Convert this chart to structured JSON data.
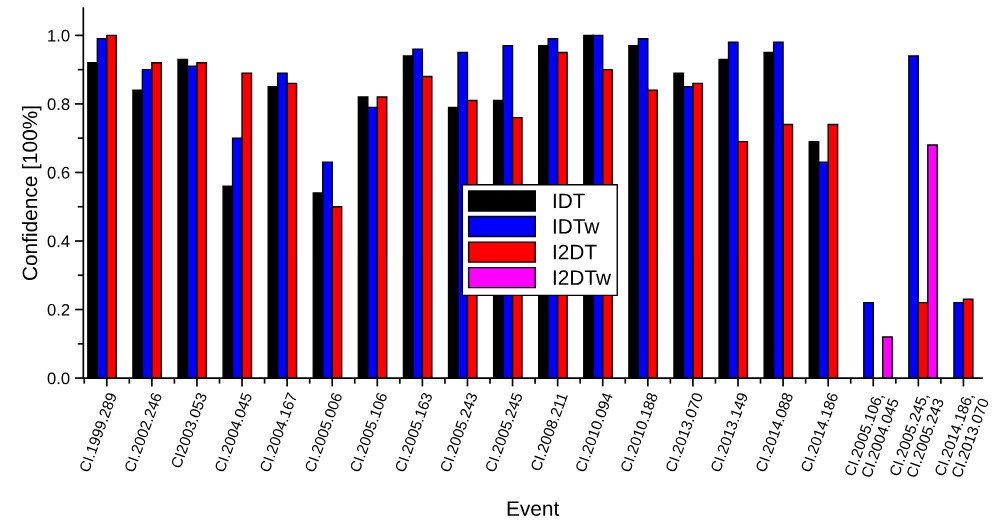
{
  "chart_data": {
    "type": "bar",
    "xlabel": "Event",
    "ylabel": "Confidence [100%]",
    "categories": [
      "CI.1999.289",
      "CI.2002.246",
      "CI2003.053",
      "CI.2004.045",
      "CI.2004.167",
      "CI.2005.006",
      "CI.2005.106",
      "CI.2005.163",
      "CI.2005.243",
      "CI.2005.245",
      "CI.2008.211",
      "CI.2010.094",
      "CI.2010.188",
      "CI.2013.070",
      "CI.2013.149",
      "CI.2014.088",
      "CI.2014.186",
      "CI.2005.106,\nCI.2004.045",
      "CI.2005.245,\nCI.2005.243",
      "CI.2014.186,\nCI.2013.070"
    ],
    "series": [
      {
        "name": "IDT",
        "color": "#000000",
        "values": [
          0.92,
          0.84,
          0.93,
          0.56,
          0.85,
          0.54,
          0.82,
          0.94,
          0.79,
          0.81,
          0.97,
          1.0,
          0.97,
          0.89,
          0.93,
          0.95,
          0.69,
          null,
          null,
          null
        ]
      },
      {
        "name": "IDTw",
        "color": "#0000ff",
        "values": [
          0.99,
          0.9,
          0.91,
          0.7,
          0.89,
          0.63,
          0.79,
          0.96,
          0.95,
          0.97,
          0.99,
          1.0,
          0.99,
          0.85,
          0.98,
          0.98,
          0.63,
          0.22,
          0.94,
          0.22
        ]
      },
      {
        "name": "I2DT",
        "color": "#ff0000",
        "values": [
          1.0,
          0.92,
          0.92,
          0.89,
          0.86,
          0.5,
          0.82,
          0.88,
          0.81,
          0.76,
          0.95,
          0.9,
          0.84,
          0.86,
          0.69,
          0.74,
          0.74,
          null,
          0.22,
          0.23
        ]
      },
      {
        "name": "I2DTw",
        "color": "#ff00ff",
        "values": [
          null,
          null,
          null,
          null,
          null,
          null,
          null,
          null,
          null,
          null,
          null,
          null,
          null,
          null,
          null,
          null,
          null,
          0.12,
          0.68,
          null
        ]
      }
    ],
    "ylim": [
      0,
      1.08
    ],
    "yticks": [
      {
        "value": 0,
        "label": "0.0"
      },
      {
        "value": 0.2,
        "label": "0.2"
      },
      {
        "value": 0.4,
        "label": "0.4"
      },
      {
        "value": 0.6,
        "label": "0.6"
      },
      {
        "value": 0.8,
        "label": "0.8"
      },
      {
        "value": 1.0,
        "label": "1.0"
      }
    ],
    "legend": "center",
    "grid": false
  }
}
